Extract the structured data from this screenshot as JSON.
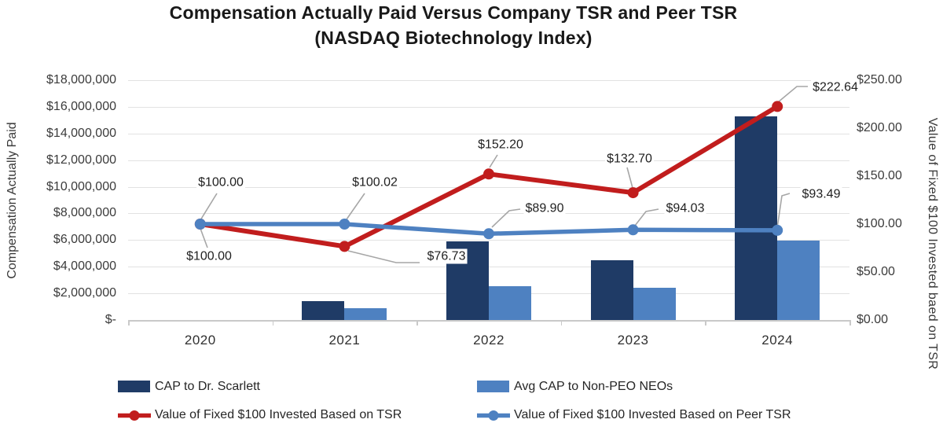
{
  "title": {
    "line1": "Compensation Actually Paid Versus Company TSR and Peer TSR",
    "line2": "(NASDAQ Biotechnology Index)"
  },
  "chart_data": {
    "type": "combo-bar-line",
    "categories": [
      "2020",
      "2021",
      "2022",
      "2023",
      "2024"
    ],
    "series": [
      {
        "name": "CAP to Dr. Scarlett",
        "type": "bar",
        "axis": "left",
        "color": "#1f3b66",
        "values": [
          0,
          1400000,
          5900000,
          4500000,
          15300000
        ]
      },
      {
        "name": "Avg CAP to Non-PEO NEOs",
        "type": "bar",
        "axis": "left",
        "color": "#4e81c1",
        "values": [
          0,
          900000,
          2550000,
          2400000,
          5950000
        ]
      },
      {
        "name": "Value of Fixed $100 Invested Based on TSR",
        "type": "line",
        "axis": "right",
        "color": "#c11d1d",
        "values": [
          100.0,
          76.73,
          152.2,
          132.7,
          222.64
        ],
        "labels": [
          "$100.00",
          "$76.73",
          "$152.20",
          "$132.70",
          "$222.64"
        ]
      },
      {
        "name": "Value of Fixed $100 Invested Based on Peer TSR",
        "type": "line",
        "axis": "right",
        "color": "#4e81c1",
        "values": [
          100.0,
          100.02,
          89.9,
          94.03,
          93.49
        ],
        "labels": [
          "$100.00",
          "$100.02",
          "$89.90",
          "$94.03",
          "$93.49"
        ]
      }
    ],
    "left_axis": {
      "label": "Compensation Actually Paid",
      "range": [
        0,
        18000000
      ],
      "ticks": [
        "$18,000,000",
        "$16,000,000",
        "$14,000,000",
        "$12,000,000",
        "$10,000,000",
        "$8,000,000",
        "$6,000,000",
        "$4,000,000",
        "$2,000,000",
        "$-"
      ]
    },
    "right_axis": {
      "label": "Value of Fixed $100 Invested baed on TSR",
      "range": [
        0,
        250
      ],
      "ticks": [
        "$250.00",
        "$200.00",
        "$150.00",
        "$100.00",
        "$50.00",
        "$0.00"
      ]
    },
    "grid": "horizontal",
    "legend_position": "bottom"
  }
}
